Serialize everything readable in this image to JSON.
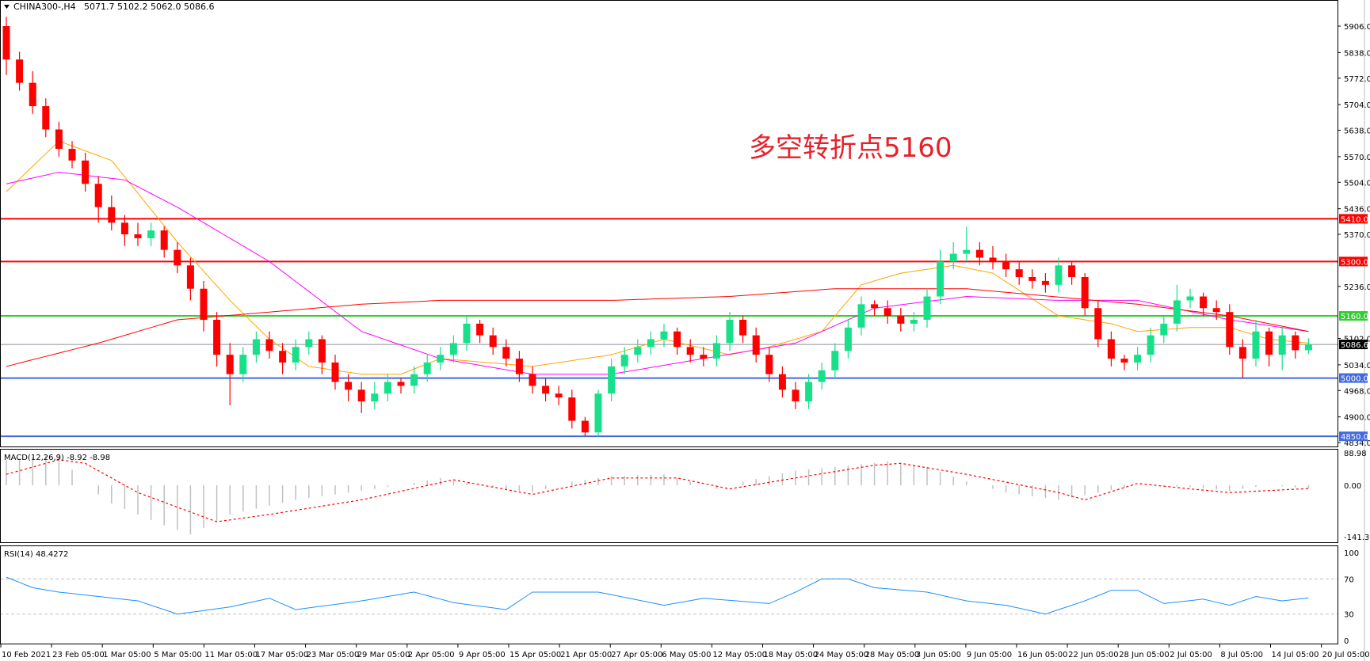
{
  "header": {
    "symbol": "CHINA300-,H4",
    "ohlc_text": "5071.7 5102.2 5062.0 5086.6"
  },
  "annotation": "多空转折点5160",
  "colors": {
    "bull": "#18e08a",
    "bear": "#ff0000",
    "ma_fast": "#ffa500",
    "ma_mid": "#ff00ff",
    "ma_slow": "#ff0000",
    "resistance": "#ff0000",
    "pivot": "#33cc33",
    "support": "#4169e1",
    "current": "#8a9099",
    "macd_hist": "#c0c0c0",
    "macd_signal": "#ff0000",
    "rsi": "#1e90ff"
  },
  "chart_data": {
    "type": "candlestick",
    "timeframe": "H4",
    "price_axis": {
      "ylim": [
        4834.0,
        5906.0
      ],
      "ticks": [
        "5906.0",
        "5838.0",
        "5772.0",
        "5704.0",
        "5638.0",
        "5570.0",
        "5504.0",
        "5436.0",
        "5370.0",
        "5236.0",
        "5102.0",
        "5034.0",
        "4968.0",
        "4900.0",
        "4834.0"
      ]
    },
    "x_ticks": [
      "10 Feb 2021",
      "23 Feb 05:00",
      "1 Mar 05:00",
      "5 Mar 05:00",
      "11 Mar 05:00",
      "17 Mar 05:00",
      "23 Mar 05:00",
      "29 Mar 05:00",
      "2 Apr 05:00",
      "9 Apr 05:00",
      "15 Apr 05:00",
      "21 Apr 05:00",
      "27 Apr 05:00",
      "6 May 05:00",
      "12 May 05:00",
      "18 May 05:00",
      "24 May 05:00",
      "28 May 05:00",
      "3 Jun 05:00",
      "9 Jun 05:00",
      "16 Jun 05:00",
      "22 Jun 05:00",
      "28 Jun 05:00",
      "2 Jul 05:00",
      "8 Jul 05:00",
      "14 Jul 05:00",
      "20 Jul 05:00"
    ],
    "open": [
      5906,
      5820,
      5760,
      5700,
      5640,
      5590,
      5560,
      5500,
      5440,
      5400,
      5370,
      5360,
      5380,
      5330,
      5290,
      5230,
      5150,
      5060,
      5010,
      5060,
      5100,
      5070,
      5040,
      5080,
      5100,
      5040,
      4990,
      4970,
      4940,
      4960,
      4990,
      4980,
      5010,
      5040,
      5060,
      5090,
      5140,
      5110,
      5080,
      5050,
      5010,
      4980,
      4960,
      4950,
      4890,
      4860,
      4960,
      5030,
      5060,
      5080,
      5100,
      5120,
      5080,
      5060,
      5050,
      5090,
      5150,
      5110,
      5060,
      5010,
      4970,
      4940,
      4990,
      5020,
      5070,
      5130,
      5190,
      5180,
      5160,
      5140,
      5150,
      5210,
      5300,
      5320,
      5330,
      5310,
      5300,
      5280,
      5260,
      5250,
      5240,
      5290,
      5260,
      5180,
      5100,
      5050,
      5040,
      5060,
      5110,
      5140,
      5200,
      5210,
      5180,
      5170,
      5080,
      5050,
      5120,
      5060,
      5110,
      5071.7
    ],
    "high": [
      5930,
      5840,
      5790,
      5720,
      5660,
      5610,
      5580,
      5520,
      5470,
      5420,
      5400,
      5400,
      5390,
      5350,
      5310,
      5250,
      5170,
      5090,
      5080,
      5120,
      5120,
      5090,
      5100,
      5120,
      5110,
      5060,
      5010,
      4990,
      4990,
      5010,
      5000,
      5030,
      5060,
      5080,
      5110,
      5160,
      5150,
      5130,
      5100,
      5070,
      5030,
      5000,
      4980,
      4970,
      4900,
      4970,
      5050,
      5080,
      5100,
      5120,
      5140,
      5130,
      5100,
      5080,
      5110,
      5170,
      5160,
      5130,
      5080,
      5030,
      4990,
      5010,
      5040,
      5090,
      5150,
      5210,
      5200,
      5200,
      5180,
      5170,
      5230,
      5330,
      5350,
      5390,
      5350,
      5340,
      5320,
      5300,
      5280,
      5270,
      5310,
      5300,
      5270,
      5200,
      5120,
      5060,
      5080,
      5130,
      5160,
      5240,
      5230,
      5220,
      5200,
      5190,
      5100,
      5150,
      5130,
      5130,
      5120,
      5102.2
    ],
    "low": [
      5780,
      5740,
      5680,
      5620,
      5570,
      5540,
      5480,
      5400,
      5380,
      5340,
      5340,
      5340,
      5310,
      5270,
      5200,
      5120,
      5030,
      4930,
      4990,
      5040,
      5050,
      5010,
      5020,
      5060,
      5010,
      4970,
      4940,
      4910,
      4920,
      4940,
      4960,
      4960,
      4990,
      5020,
      5040,
      5070,
      5090,
      5060,
      5030,
      4990,
      4960,
      4940,
      4930,
      4870,
      4850,
      4850,
      4940,
      5010,
      5040,
      5060,
      5080,
      5060,
      5040,
      5030,
      5030,
      5070,
      5090,
      5040,
      4990,
      4950,
      4920,
      4920,
      4970,
      5000,
      5050,
      5110,
      5160,
      5140,
      5120,
      5120,
      5130,
      5190,
      5280,
      5300,
      5290,
      5280,
      5260,
      5240,
      5230,
      5220,
      5220,
      5240,
      5160,
      5080,
      5030,
      5020,
      5020,
      5040,
      5090,
      5120,
      5180,
      5160,
      5150,
      5060,
      5000,
      5030,
      5030,
      5020,
      5050,
      5062.0
    ],
    "close": [
      5820,
      5760,
      5700,
      5640,
      5590,
      5560,
      5500,
      5440,
      5400,
      5370,
      5360,
      5380,
      5330,
      5290,
      5230,
      5150,
      5060,
      5010,
      5060,
      5100,
      5070,
      5040,
      5080,
      5100,
      5040,
      4990,
      4970,
      4940,
      4960,
      4990,
      4980,
      5010,
      5040,
      5060,
      5090,
      5140,
      5110,
      5080,
      5050,
      5010,
      4980,
      4960,
      4950,
      4890,
      4860,
      4960,
      5030,
      5060,
      5080,
      5100,
      5120,
      5080,
      5060,
      5050,
      5090,
      5150,
      5110,
      5060,
      5010,
      4970,
      4940,
      4990,
      5020,
      5070,
      5130,
      5190,
      5180,
      5160,
      5140,
      5150,
      5210,
      5300,
      5320,
      5330,
      5310,
      5300,
      5280,
      5260,
      5250,
      5240,
      5290,
      5260,
      5180,
      5100,
      5050,
      5040,
      5060,
      5110,
      5140,
      5200,
      5210,
      5180,
      5170,
      5080,
      5050,
      5120,
      5060,
      5110,
      5071.7,
      5086.6
    ],
    "moving_averages": [
      {
        "color_key": "ma_fast",
        "points": [
          [
            0,
            5480
          ],
          [
            4,
            5610
          ],
          [
            8,
            5560
          ],
          [
            13,
            5350
          ],
          [
            17,
            5200
          ],
          [
            20,
            5100
          ],
          [
            23,
            5030
          ],
          [
            27,
            5010
          ],
          [
            30,
            5010
          ],
          [
            33,
            5050
          ],
          [
            40,
            5030
          ],
          [
            46,
            5060
          ],
          [
            50,
            5100
          ],
          [
            55,
            5060
          ],
          [
            58,
            5080
          ],
          [
            62,
            5120
          ],
          [
            65,
            5240
          ],
          [
            68,
            5270
          ],
          [
            72,
            5290
          ],
          [
            75,
            5270
          ],
          [
            80,
            5160
          ],
          [
            84,
            5140
          ],
          [
            86,
            5120
          ],
          [
            90,
            5130
          ],
          [
            93,
            5130
          ],
          [
            96,
            5100
          ],
          [
            99,
            5090
          ]
        ]
      },
      {
        "color_key": "ma_mid",
        "points": [
          [
            0,
            5500
          ],
          [
            4,
            5530
          ],
          [
            9,
            5510
          ],
          [
            13,
            5440
          ],
          [
            20,
            5300
          ],
          [
            27,
            5120
          ],
          [
            33,
            5050
          ],
          [
            40,
            5010
          ],
          [
            46,
            5010
          ],
          [
            53,
            5050
          ],
          [
            60,
            5090
          ],
          [
            66,
            5180
          ],
          [
            73,
            5210
          ],
          [
            80,
            5200
          ],
          [
            86,
            5200
          ],
          [
            93,
            5150
          ],
          [
            99,
            5120
          ]
        ]
      },
      {
        "color_key": "ma_slow",
        "points": [
          [
            0,
            5030
          ],
          [
            7,
            5090
          ],
          [
            13,
            5150
          ],
          [
            20,
            5170
          ],
          [
            27,
            5190
          ],
          [
            33,
            5200
          ],
          [
            46,
            5200
          ],
          [
            55,
            5210
          ],
          [
            63,
            5230
          ],
          [
            73,
            5230
          ],
          [
            86,
            5190
          ],
          [
            93,
            5160
          ],
          [
            99,
            5120
          ]
        ]
      }
    ],
    "horizontal_lines": [
      {
        "value": 5410.0,
        "label": "5410.0",
        "color_key": "resistance"
      },
      {
        "value": 5300.0,
        "label": "5300.0",
        "color_key": "resistance"
      },
      {
        "value": 5160.0,
        "label": "5160.0",
        "color_key": "pivot"
      },
      {
        "value": 5086.6,
        "label": "5086.6",
        "color_key": "current"
      },
      {
        "value": 5000.0,
        "label": "5000.0",
        "color_key": "support"
      },
      {
        "value": 4850.0,
        "label": "4850.0",
        "color_key": "support"
      }
    ],
    "macd": {
      "title": "MACD(12,26,9) -8.92 -8.98",
      "ylim": [
        -141.39,
        88.98
      ],
      "ticks": [
        "88.98",
        "0.00",
        "-141.39"
      ],
      "histogram": [
        [
          0,
          70
        ],
        [
          4,
          85
        ],
        [
          6,
          0
        ],
        [
          8,
          -50
        ],
        [
          12,
          -110
        ],
        [
          14,
          -135
        ],
        [
          17,
          -80
        ],
        [
          22,
          -40
        ],
        [
          27,
          -15
        ],
        [
          30,
          0
        ],
        [
          33,
          20
        ],
        [
          36,
          0
        ],
        [
          40,
          -20
        ],
        [
          43,
          10
        ],
        [
          46,
          25
        ],
        [
          50,
          30
        ],
        [
          54,
          -10
        ],
        [
          56,
          10
        ],
        [
          60,
          40
        ],
        [
          63,
          50
        ],
        [
          67,
          65
        ],
        [
          70,
          50
        ],
        [
          73,
          10
        ],
        [
          76,
          -20
        ],
        [
          80,
          -40
        ],
        [
          83,
          -20
        ],
        [
          86,
          0
        ],
        [
          90,
          -5
        ],
        [
          93,
          -15
        ],
        [
          96,
          0
        ],
        [
          99,
          -8.92
        ]
      ],
      "signal": [
        [
          0,
          30
        ],
        [
          4,
          70
        ],
        [
          6,
          60
        ],
        [
          10,
          -20
        ],
        [
          16,
          -100
        ],
        [
          20,
          -80
        ],
        [
          27,
          -40
        ],
        [
          34,
          15
        ],
        [
          40,
          -25
        ],
        [
          46,
          20
        ],
        [
          51,
          20
        ],
        [
          55,
          -10
        ],
        [
          60,
          20
        ],
        [
          66,
          55
        ],
        [
          68,
          60
        ],
        [
          73,
          30
        ],
        [
          80,
          -20
        ],
        [
          82,
          -40
        ],
        [
          86,
          5
        ],
        [
          90,
          -10
        ],
        [
          93,
          -20
        ],
        [
          99,
          -8.98
        ]
      ]
    },
    "rsi": {
      "title": "RSI(14) 48.4272",
      "ylim": [
        0,
        100
      ],
      "ticks": [
        "100",
        "70",
        "30",
        "0"
      ],
      "levels": [
        70,
        30
      ],
      "values": [
        [
          0,
          72
        ],
        [
          2,
          60
        ],
        [
          4,
          55
        ],
        [
          7,
          50
        ],
        [
          10,
          45
        ],
        [
          13,
          30
        ],
        [
          17,
          38
        ],
        [
          20,
          48
        ],
        [
          22,
          35
        ],
        [
          27,
          45
        ],
        [
          31,
          55
        ],
        [
          34,
          43
        ],
        [
          38,
          35
        ],
        [
          40,
          55
        ],
        [
          45,
          55
        ],
        [
          50,
          40
        ],
        [
          53,
          48
        ],
        [
          58,
          42
        ],
        [
          60,
          55
        ],
        [
          62,
          70
        ],
        [
          64,
          70
        ],
        [
          66,
          60
        ],
        [
          70,
          55
        ],
        [
          73,
          45
        ],
        [
          76,
          40
        ],
        [
          79,
          30
        ],
        [
          82,
          45
        ],
        [
          84,
          57
        ],
        [
          86,
          57
        ],
        [
          88,
          42
        ],
        [
          91,
          47
        ],
        [
          93,
          40
        ],
        [
          95,
          50
        ],
        [
          97,
          45
        ],
        [
          99,
          48.4272
        ]
      ]
    }
  }
}
